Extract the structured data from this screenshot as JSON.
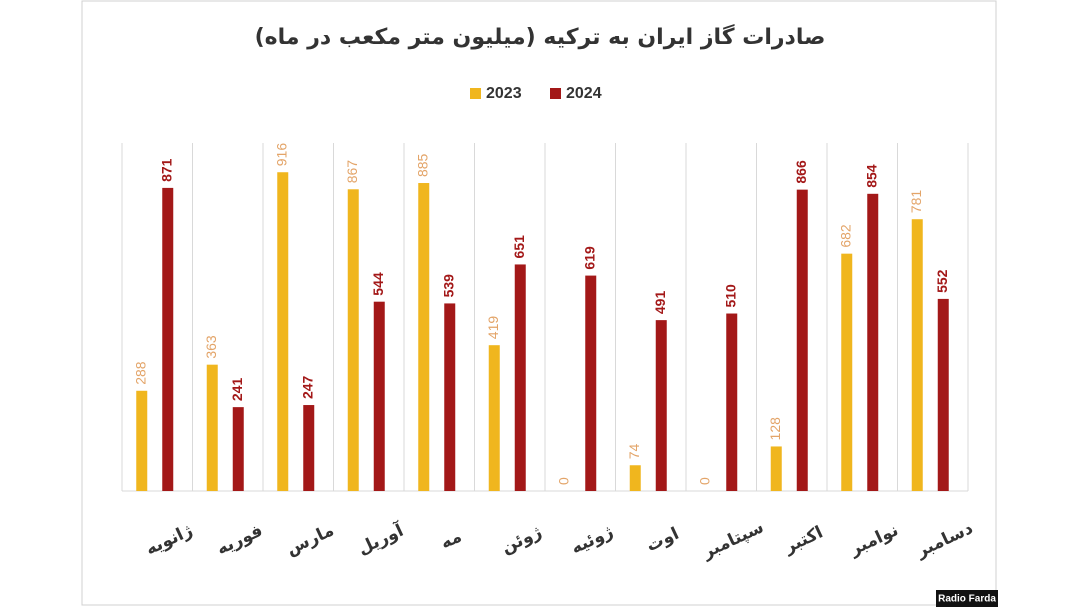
{
  "chart_data": {
    "type": "bar",
    "title": "صادرات گاز ایران به ترکیه (میلیون متر مکعب در ماه)",
    "categories": [
      "ژانویه",
      "فوریه",
      "مارس",
      "آوریل",
      "مه",
      "ژوئن",
      "ژوئیه",
      "اوت",
      "سپتامبر",
      "اکتبر",
      "نوامبر",
      "دسامبر"
    ],
    "series": [
      {
        "name": "2023",
        "color": "#f0b61e",
        "values": [
          288,
          363,
          916,
          867,
          885,
          419,
          0,
          74,
          0,
          128,
          682,
          781
        ]
      },
      {
        "name": "2024",
        "color": "#a31818",
        "values": [
          871,
          241,
          247,
          544,
          539,
          651,
          619,
          491,
          510,
          866,
          854,
          552
        ]
      }
    ],
    "ylim": [
      0,
      1000
    ],
    "credit": "Radio Farda"
  }
}
